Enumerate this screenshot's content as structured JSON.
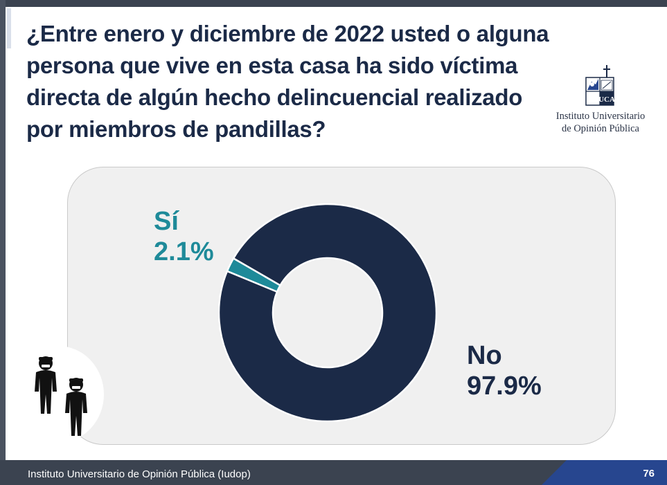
{
  "title": "¿Entre enero y diciembre de 2022 usted o alguna persona que vive en esta casa ha sido víctima directa de algún hecho delincuencial realizado por miembros de pandillas?",
  "logo": {
    "name_line1": "Instituto Universitario",
    "name_line2": "de Opinión Pública",
    "mark": "UCA"
  },
  "chart_data": {
    "type": "pie",
    "labels": [
      "Sí",
      "No"
    ],
    "values": [
      2.1,
      97.9
    ],
    "value_labels": [
      "2.1%",
      "97.9%"
    ],
    "colors": [
      "#1e8a99",
      "#1b2a47"
    ],
    "donut": true
  },
  "illustration": {
    "icon": "gang-members-icon"
  },
  "footer": {
    "text": "Instituto Universitario de Opinión Pública (Iudop)",
    "page": "76"
  }
}
